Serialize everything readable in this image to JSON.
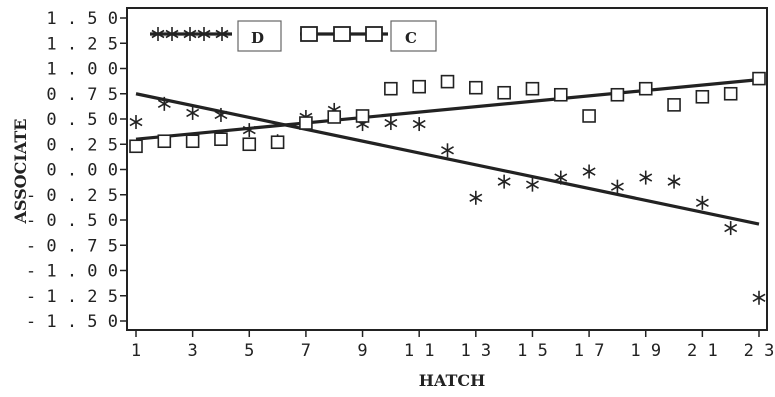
{
  "chart_data": {
    "type": "scatter",
    "title": "",
    "xlabel": "HATCH",
    "ylabel": "ASSOCIATE",
    "xlim": [
      1,
      23
    ],
    "ylim": [
      -1.5,
      1.5
    ],
    "grid": false,
    "legend_position": "top-left",
    "x_ticks": [
      1,
      3,
      5,
      7,
      9,
      11,
      13,
      15,
      17,
      19,
      21,
      23
    ],
    "x_tick_labels": [
      "1",
      "3",
      "5",
      "7",
      "9",
      "11",
      "13",
      "15",
      "17",
      "19",
      "21",
      "23"
    ],
    "y_ticks": [
      1.5,
      1.25,
      1.0,
      0.75,
      0.5,
      0.25,
      0.0,
      -0.25,
      -0.5,
      -0.75,
      -1.0,
      -1.25,
      -1.5
    ],
    "y_tick_labels": [
      "1.50",
      "1.25",
      "1.00",
      "0.75",
      "0.50",
      "0.25",
      "0.00",
      "-0.25",
      "-0.50",
      "-0.75",
      "-1.00",
      "-1.25",
      "-1.50"
    ],
    "x_tick_label_display": [
      "1",
      "3",
      "5",
      "7",
      "9",
      "1 1",
      "1 3",
      "1 5",
      "1 7",
      "1 9",
      "2 1",
      "2 3"
    ],
    "y_tick_label_display": [
      "1 . 5 0",
      "1 . 2 5",
      "1 . 0 0",
      "0 . 7 5",
      "0 . 5 0",
      "0 . 2 5",
      "0 . 0 0",
      "- 0 . 2 5",
      "- 0 . 5 0",
      "- 0 . 7 5",
      "- 1 . 0 0",
      "- 1 . 2 5",
      "- 1 . 5 0"
    ],
    "series": [
      {
        "name": "D",
        "marker": "star",
        "color": "#222222",
        "x": [
          1,
          2,
          3,
          4,
          5,
          6,
          7,
          8,
          9,
          10,
          11,
          12,
          13,
          14,
          15,
          16,
          17,
          18,
          19,
          20,
          21,
          22,
          23
        ],
        "values": [
          0.47,
          0.65,
          0.56,
          0.54,
          0.39,
          0.28,
          0.52,
          0.59,
          0.45,
          0.46,
          0.45,
          0.19,
          -0.28,
          -0.12,
          -0.15,
          -0.08,
          -0.02,
          -0.17,
          -0.08,
          -0.12,
          -0.33,
          -0.58,
          -1.27
        ],
        "trend": [
          0.75,
          -0.54
        ]
      },
      {
        "name": "C",
        "marker": "square",
        "color": "#222222",
        "x": [
          1,
          2,
          3,
          4,
          5,
          6,
          7,
          8,
          9,
          10,
          11,
          12,
          13,
          14,
          15,
          16,
          17,
          18,
          19,
          20,
          21,
          22,
          23
        ],
        "values": [
          0.23,
          0.28,
          0.28,
          0.3,
          0.25,
          0.27,
          0.46,
          0.52,
          0.53,
          0.8,
          0.82,
          0.87,
          0.81,
          0.76,
          0.8,
          0.74,
          0.53,
          0.74,
          0.8,
          0.64,
          0.72,
          0.75,
          0.9
        ],
        "trend": [
          0.3,
          0.89
        ]
      }
    ]
  }
}
